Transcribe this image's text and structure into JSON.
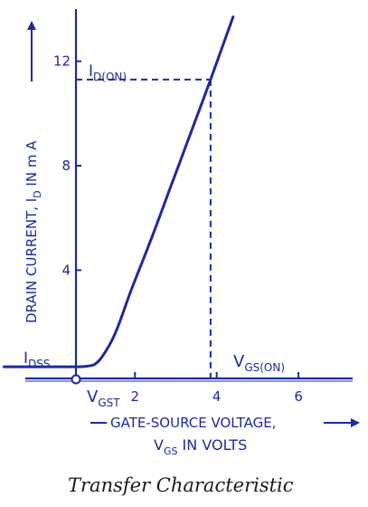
{
  "chart_data": {
    "type": "line",
    "caption": "Transfer Characteristic",
    "xlabel": {
      "line1": "GATE-SOURCE VOLTAGE,",
      "line2_main": "V",
      "line2_sub": "GS",
      "line2_rest": " IN VOLTS"
    },
    "ylabel": {
      "main": "DRAIN CURRENT, I",
      "sub": "D",
      "rest": " IN m A"
    },
    "x_ticks": [
      {
        "value": 2,
        "label": "2"
      },
      {
        "value": 4,
        "label": "4"
      },
      {
        "value": 6,
        "label": "6"
      }
    ],
    "y_ticks": [
      {
        "value": 4,
        "label": "4"
      },
      {
        "value": 8,
        "label": "8"
      },
      {
        "value": 12,
        "label": "12"
      }
    ],
    "xlim": [
      -1.3,
      7.7
    ],
    "ylim": [
      -0.25,
      14
    ],
    "series": [
      {
        "points": [
          [
            -1.2,
            0.3
          ],
          [
            0.0,
            0.3
          ],
          [
            0.8,
            0.32
          ],
          [
            1.1,
            0.5
          ],
          [
            1.4,
            1.2
          ],
          [
            1.6,
            1.9
          ],
          [
            1.9,
            3.2
          ],
          [
            2.4,
            5.2
          ],
          [
            2.9,
            7.3
          ],
          [
            3.4,
            9.4
          ],
          [
            3.85,
            11.3
          ],
          [
            4.4,
            13.7
          ]
        ]
      }
    ],
    "annotations": {
      "id_on": {
        "main": "I",
        "sub": "D(ON)",
        "value": 11.3
      },
      "vgs_on": {
        "main": "V",
        "sub": "GS(ON)",
        "value": 3.85
      },
      "idss": {
        "main": "I",
        "sub": "DSS",
        "value": 0.3
      },
      "vgst": {
        "main": "V",
        "sub": "GST"
      }
    }
  }
}
